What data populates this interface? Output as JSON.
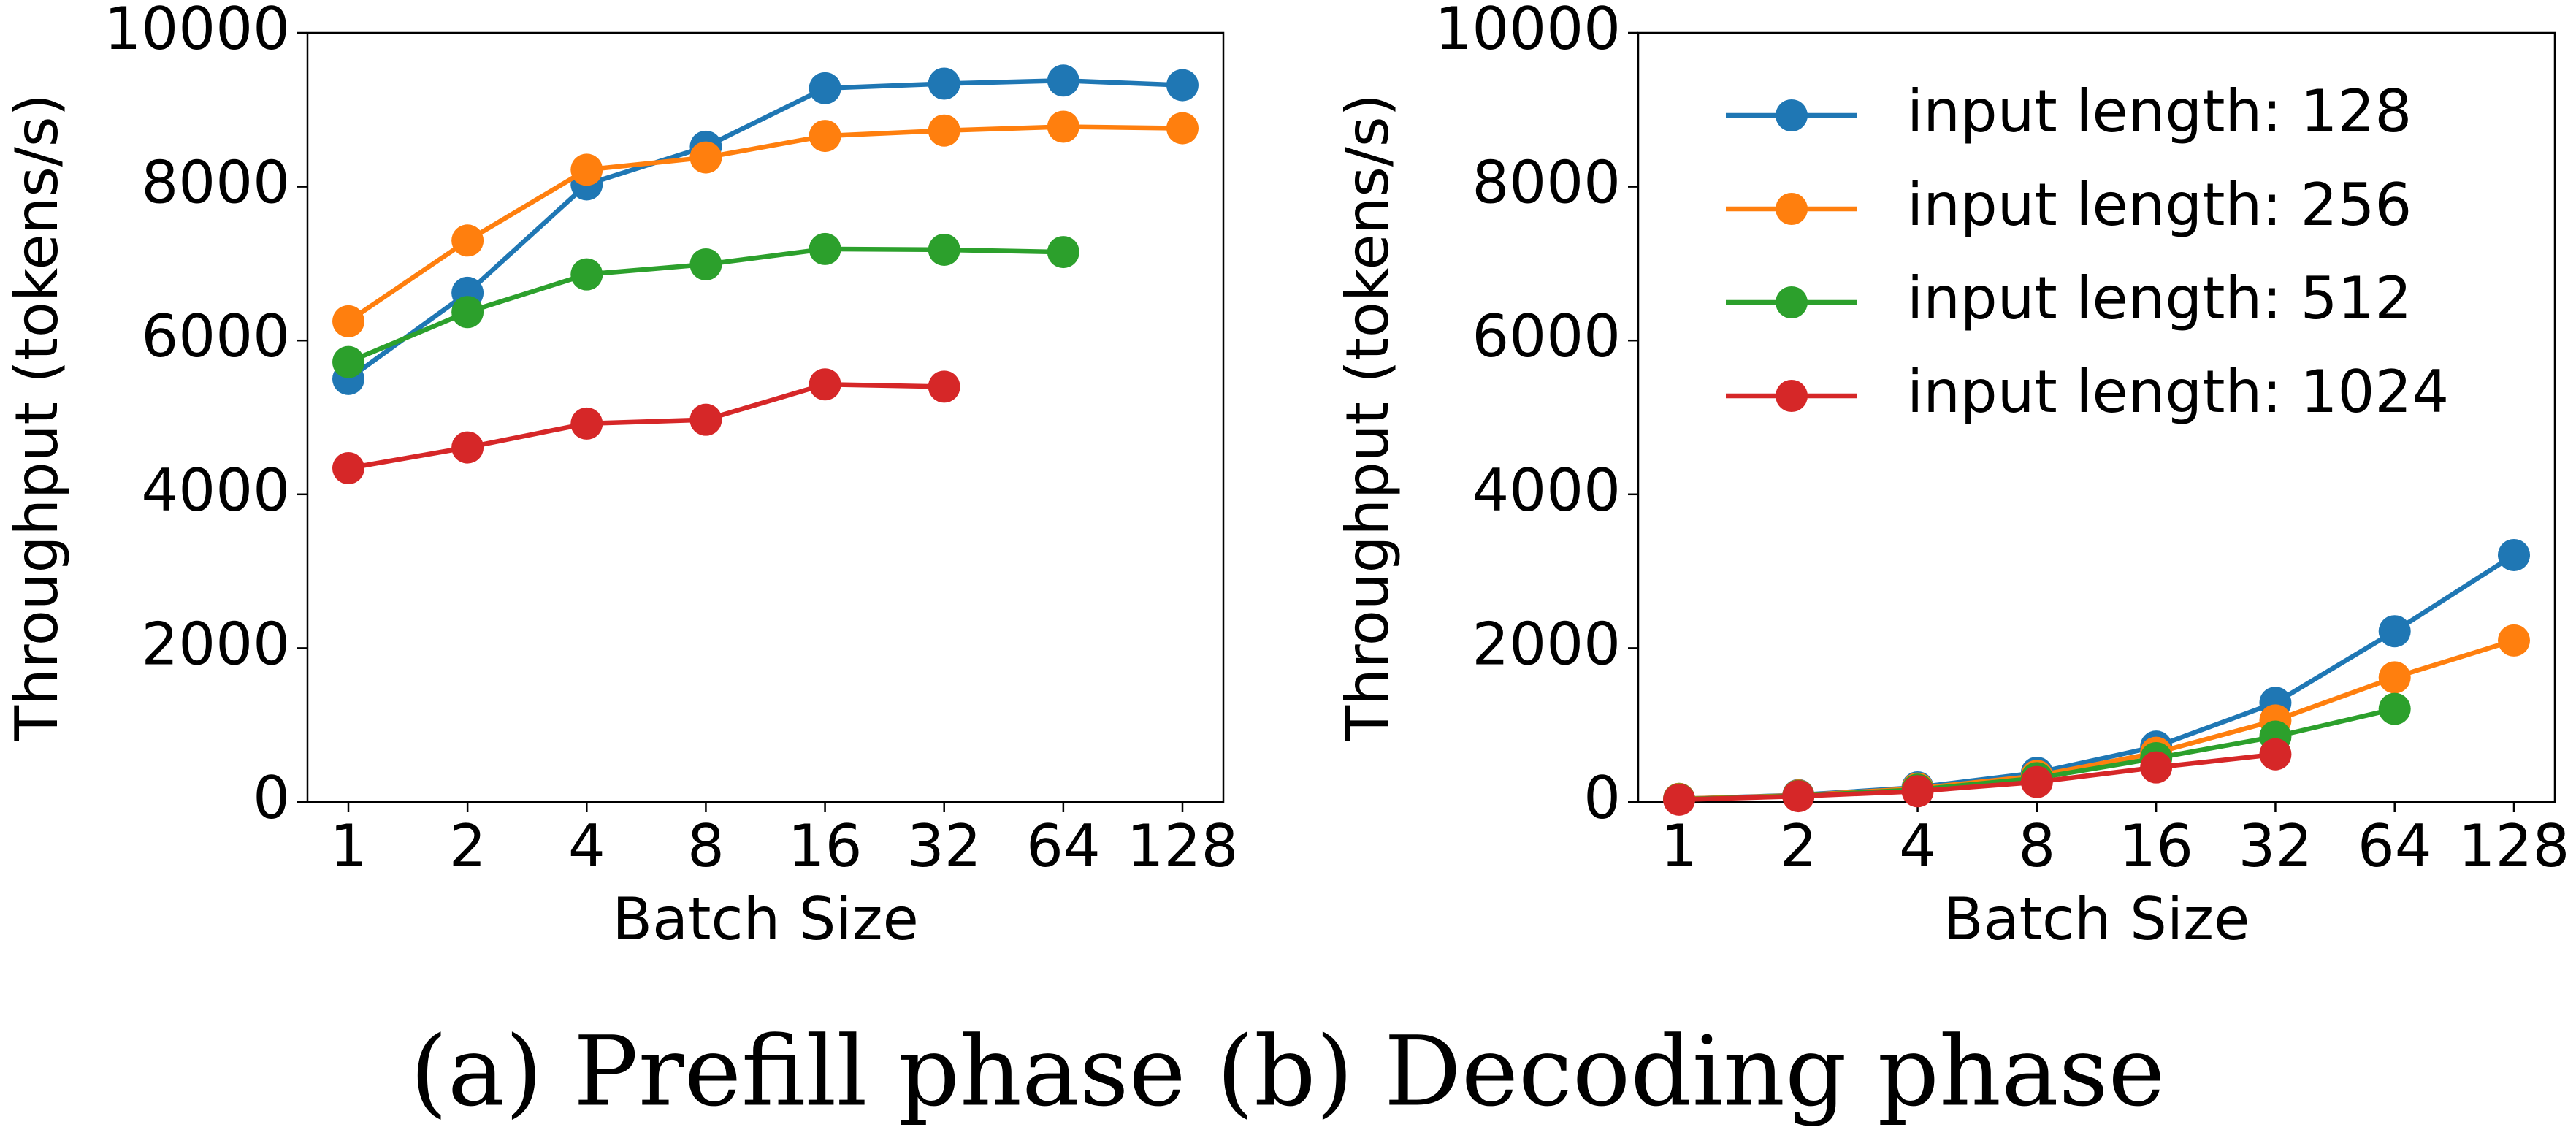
{
  "chart_data": [
    {
      "type": "line",
      "xlabel": "Batch Size",
      "ylabel": "Throughput (tokens/s)",
      "categories": [
        "1",
        "2",
        "4",
        "8",
        "16",
        "32",
        "64",
        "128"
      ],
      "ylim": [
        0,
        10000
      ],
      "yticks": [
        0,
        2000,
        4000,
        6000,
        8000,
        10000
      ],
      "series": [
        {
          "color": "#1f77b4",
          "values": [
            5500,
            6620,
            8030,
            8520,
            9280,
            9340,
            9380,
            9320
          ]
        },
        {
          "color": "#ff7f0e",
          "values": [
            6250,
            7300,
            8220,
            8380,
            8660,
            8730,
            8780,
            8760
          ]
        },
        {
          "color": "#2ca02c",
          "values": [
            5720,
            6370,
            6860,
            6990,
            7190,
            7180,
            7150,
            null
          ]
        },
        {
          "color": "#d62728",
          "values": [
            4340,
            4610,
            4920,
            4970,
            5430,
            5400,
            null,
            null
          ]
        }
      ]
    },
    {
      "type": "line",
      "xlabel": "Batch Size",
      "ylabel": "Throughput (tokens/s)",
      "categories": [
        "1",
        "2",
        "4",
        "8",
        "16",
        "32",
        "64",
        "128"
      ],
      "ylim": [
        0,
        10000
      ],
      "yticks": [
        0,
        2000,
        4000,
        6000,
        8000,
        10000
      ],
      "legend": "upper left",
      "series": [
        {
          "name": "input length: 128",
          "color": "#1f77b4",
          "values": [
            40,
            90,
            190,
            380,
            720,
            1290,
            2220,
            3210
          ]
        },
        {
          "name": "input length: 256",
          "color": "#ff7f0e",
          "values": [
            40,
            85,
            175,
            340,
            640,
            1060,
            1620,
            2100
          ]
        },
        {
          "name": "input length: 512",
          "color": "#2ca02c",
          "values": [
            35,
            80,
            160,
            310,
            570,
            850,
            1210,
            null
          ]
        },
        {
          "name": "input length: 1024",
          "color": "#d62728",
          "values": [
            30,
            75,
            140,
            260,
            450,
            620,
            null,
            null
          ]
        }
      ]
    }
  ],
  "caption": "(a) Prefill phase (b) Decoding phase"
}
